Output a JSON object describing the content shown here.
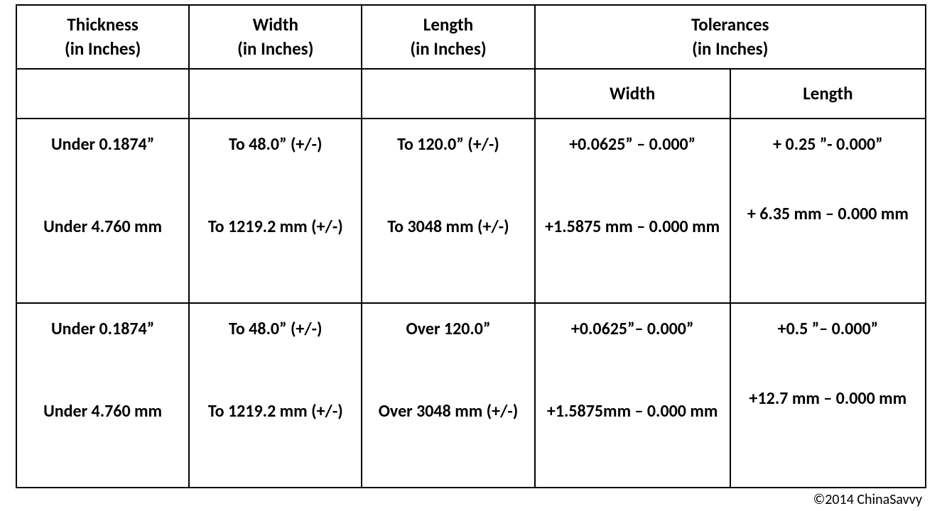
{
  "headers": {
    "thickness": "Thickness\n(in Inches)",
    "width": "Width\n(in Inches)",
    "length": "Length\n(in Inches)",
    "tolerances": "Tolerances\n(in Inches)",
    "tol_width": "Width",
    "tol_length": "Length"
  },
  "rows": [
    {
      "thickness_imp": "Under 0.1874”",
      "thickness_met": "Under 4.760 mm",
      "width_imp": "To 48.0” (+/-)",
      "width_met": "To 1219.2 mm (+/-)",
      "length_imp": "To 120.0” (+/-)",
      "length_met": "To 3048 mm (+/-)",
      "tol_w_imp": "+0.0625” – 0.000”",
      "tol_w_met": "+1.5875 mm – 0.000 mm",
      "tol_l_imp": "+ 0.25 ”- 0.000”",
      "tol_l_met": "+ 6.35 mm – 0.000 mm"
    },
    {
      "thickness_imp": "Under 0.1874”",
      "thickness_met": "Under 4.760 mm",
      "width_imp": "To 48.0” (+/-)",
      "width_met": "To 1219.2 mm (+/-)",
      "length_imp": "Over 120.0”",
      "length_met": "Over 3048 mm (+/-)",
      "tol_w_imp": "+0.0625”– 0.000”",
      "tol_w_met": "+1.5875mm – 0.000 mm",
      "tol_l_imp": "+0.5 ”– 0.000”",
      "tol_l_met": "+12.7 mm – 0.000 mm"
    }
  ],
  "copyright": "©2014 ChinaSavvy"
}
